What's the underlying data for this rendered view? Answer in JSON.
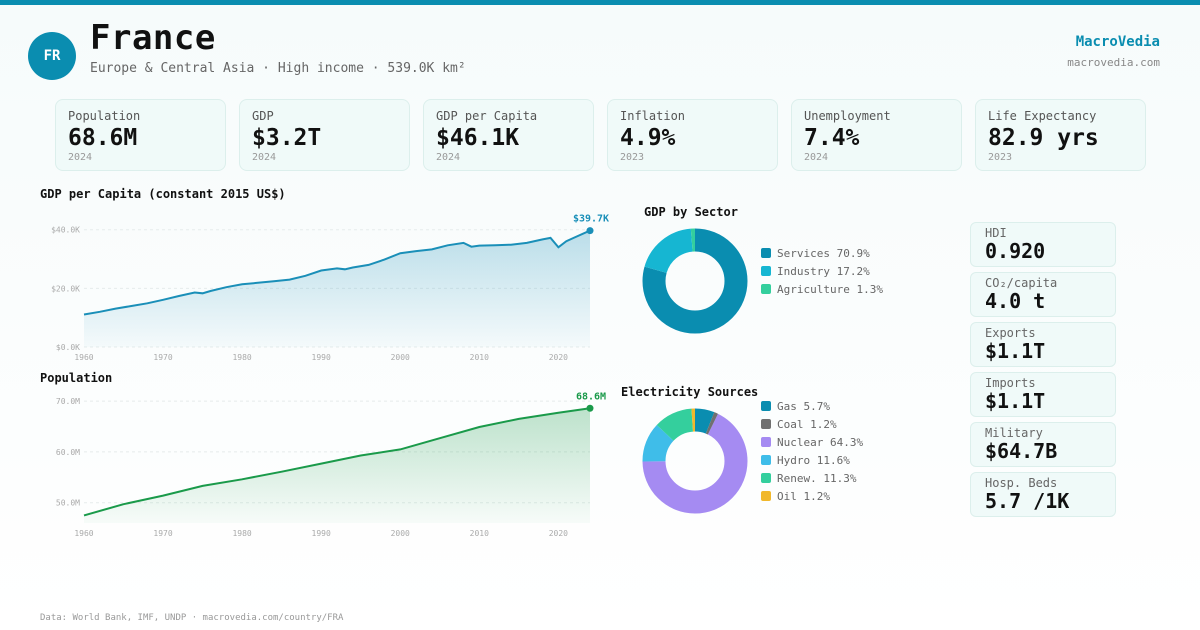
{
  "header": {
    "flag_code": "FR",
    "country": "France",
    "subtitle": "Europe & Central Asia · High income · 539.0K km²",
    "brand": "MacroVedia",
    "brand_url": "macrovedia.com"
  },
  "kpis": [
    {
      "label": "Population",
      "value": "68.6M",
      "year": "2024"
    },
    {
      "label": "GDP",
      "value": "$3.2T",
      "year": "2024"
    },
    {
      "label": "GDP per Capita",
      "value": "$46.1K",
      "year": "2024"
    },
    {
      "label": "Inflation",
      "value": "4.9%",
      "year": "2023"
    },
    {
      "label": "Unemployment",
      "value": "7.4%",
      "year": "2024"
    },
    {
      "label": "Life Expectancy",
      "value": "82.9 yrs",
      "year": "2023"
    }
  ],
  "side_stats": [
    {
      "label": "HDI",
      "value": "0.920"
    },
    {
      "label": "CO₂/capita",
      "value": "4.0 t"
    },
    {
      "label": "Exports",
      "value": "$1.1T"
    },
    {
      "label": "Imports",
      "value": "$1.1T"
    },
    {
      "label": "Military",
      "value": "$64.7B"
    },
    {
      "label": "Hosp. Beds",
      "value": "5.7 /1K"
    }
  ],
  "footer": "Data: World Bank, IMF, UNDP · macrovedia.com/country/FRA",
  "colors": {
    "accent": "#0a8db0",
    "green": "#1a9a4a"
  },
  "chart_data": [
    {
      "type": "area",
      "title": "GDP per Capita (constant 2015 US$)",
      "end_label": "$39.7K",
      "color": "#1a8fb8",
      "ylim": [
        0,
        44000
      ],
      "xlim": [
        1960,
        2024
      ],
      "y_ticks": [
        {
          "v": 0,
          "label": "$0.0K"
        },
        {
          "v": 20000,
          "label": "$20.0K"
        },
        {
          "v": 40000,
          "label": "$40.0K"
        }
      ],
      "x_ticks": [
        1960,
        1970,
        1980,
        1990,
        2000,
        2010,
        2020
      ],
      "x": [
        1960,
        1962,
        1964,
        1966,
        1968,
        1970,
        1972,
        1974,
        1975,
        1976,
        1978,
        1980,
        1982,
        1984,
        1986,
        1988,
        1990,
        1992,
        1993,
        1994,
        1996,
        1998,
        2000,
        2002,
        2004,
        2006,
        2008,
        2009,
        2010,
        2012,
        2014,
        2016,
        2018,
        2019,
        2020,
        2021,
        2022,
        2024
      ],
      "y": [
        11100,
        12000,
        13100,
        14000,
        14900,
        16100,
        17400,
        18600,
        18300,
        19100,
        20400,
        21400,
        21900,
        22400,
        23000,
        24300,
        26100,
        26800,
        26500,
        27100,
        28000,
        29800,
        32000,
        32700,
        33300,
        34700,
        35500,
        34200,
        34600,
        34700,
        34900,
        35500,
        36700,
        37200,
        34000,
        36100,
        37300,
        39700
      ]
    },
    {
      "type": "area",
      "title": "Population",
      "end_label": "68.6M",
      "color": "#1a9a4a",
      "ylim": [
        46000000,
        72000000
      ],
      "xlim": [
        1960,
        2024
      ],
      "y_ticks": [
        {
          "v": 50000000,
          "label": "50.0M"
        },
        {
          "v": 60000000,
          "label": "60.0M"
        },
        {
          "v": 70000000,
          "label": "70.0M"
        }
      ],
      "x_ticks": [
        1960,
        1970,
        1980,
        1990,
        2000,
        2010,
        2020
      ],
      "x": [
        1960,
        1965,
        1970,
        1975,
        1980,
        1985,
        1990,
        1995,
        2000,
        2005,
        2010,
        2015,
        2020,
        2024
      ],
      "y": [
        47500000,
        49700000,
        51400000,
        53300000,
        54600000,
        56100000,
        57700000,
        59300000,
        60500000,
        62700000,
        64900000,
        66500000,
        67700000,
        68600000
      ]
    },
    {
      "type": "pie",
      "title": "GDP by Sector",
      "labels": [
        "Services",
        "Industry",
        "Agriculture"
      ],
      "values": [
        70.9,
        17.2,
        1.3
      ],
      "colors": [
        "#0a8db0",
        "#16b6d2",
        "#34cf9d"
      ],
      "legend": [
        "Services 70.9%",
        "Industry 17.2%",
        "Agriculture 1.3%"
      ]
    },
    {
      "type": "pie",
      "title": "Electricity Sources",
      "labels": [
        "Gas",
        "Coal",
        "Nuclear",
        "Hydro",
        "Renew.",
        "Oil"
      ],
      "values": [
        5.7,
        1.2,
        64.3,
        11.6,
        11.3,
        1.2
      ],
      "colors": [
        "#0a8db0",
        "#707070",
        "#a58bf2",
        "#3fbde9",
        "#34cf9d",
        "#f1b82c"
      ],
      "legend": [
        "Gas 5.7%",
        "Coal 1.2%",
        "Nuclear 64.3%",
        "Hydro 11.6%",
        "Renew. 11.3%",
        "Oil 1.2%"
      ]
    }
  ]
}
